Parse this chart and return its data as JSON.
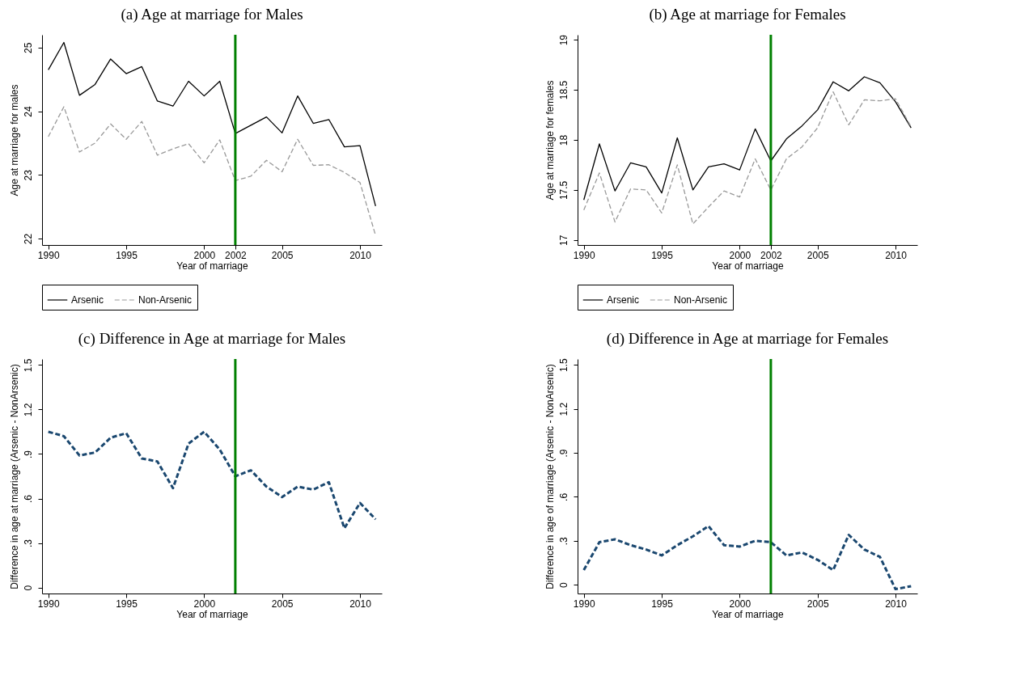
{
  "chart_data": [
    {
      "type": "line",
      "title": "(a) Age at marriage for Males",
      "xlabel": "Year of marriage",
      "ylabel": "Age at marriage for males",
      "x": [
        1990,
        1991,
        1992,
        1993,
        1994,
        1995,
        1996,
        1997,
        1998,
        1999,
        2000,
        2001,
        2002,
        2003,
        2004,
        2005,
        2006,
        2007,
        2008,
        2009,
        2010,
        2011
      ],
      "series": [
        {
          "name": "Arsenic",
          "color": "#000000",
          "line_style": "solid",
          "values": [
            24.65,
            25.08,
            24.25,
            24.42,
            24.82,
            24.59,
            24.7,
            24.16,
            24.08,
            24.47,
            24.24,
            24.47,
            23.65,
            23.78,
            23.91,
            23.66,
            24.24,
            23.81,
            23.87,
            23.44,
            23.46,
            22.51
          ]
        },
        {
          "name": "Non-Arsenic",
          "color": "#999999",
          "line_style": "dashed",
          "values": [
            23.6,
            24.07,
            23.36,
            23.5,
            23.8,
            23.56,
            23.84,
            23.31,
            23.41,
            23.49,
            23.19,
            23.55,
            22.91,
            22.98,
            23.23,
            23.05,
            23.56,
            23.15,
            23.16,
            23.04,
            22.88,
            22.05
          ]
        }
      ],
      "xlim": [
        1989.6,
        2011.4
      ],
      "xticks": [
        1990,
        1995,
        2000,
        2002,
        2005,
        2010
      ],
      "ylim": [
        21.9,
        25.2
      ],
      "yticks": [
        22,
        23,
        24,
        25
      ],
      "ref_lines": [
        {
          "axis": "x",
          "value": 2002,
          "color": "#008000"
        }
      ],
      "legend": "bottom",
      "grid": false
    },
    {
      "type": "line",
      "title": "(b) Age at marriage for Females",
      "xlabel": "Year of marriage",
      "ylabel": "Age at marriage for females",
      "x": [
        1990,
        1991,
        1992,
        1993,
        1994,
        1995,
        1996,
        1997,
        1998,
        1999,
        2000,
        2001,
        2002,
        2003,
        2004,
        2005,
        2006,
        2007,
        2008,
        2009,
        2010,
        2011
      ],
      "series": [
        {
          "name": "Arsenic",
          "color": "#000000",
          "line_style": "solid",
          "values": [
            17.4,
            17.96,
            17.49,
            17.77,
            17.73,
            17.47,
            18.02,
            17.5,
            17.73,
            17.76,
            17.7,
            18.11,
            17.79,
            18.01,
            18.14,
            18.3,
            18.58,
            18.49,
            18.63,
            18.57,
            18.38,
            18.12
          ]
        },
        {
          "name": "Non-Arsenic",
          "color": "#999999",
          "line_style": "dashed",
          "values": [
            17.3,
            17.67,
            17.18,
            17.51,
            17.5,
            17.27,
            17.75,
            17.16,
            17.33,
            17.49,
            17.43,
            17.81,
            17.5,
            17.81,
            17.93,
            18.12,
            18.48,
            18.15,
            18.4,
            18.39,
            18.41,
            18.13
          ]
        }
      ],
      "xlim": [
        1989.6,
        2011.4
      ],
      "xticks": [
        1990,
        1995,
        2000,
        2002,
        2005,
        2010
      ],
      "ylim": [
        16.95,
        19.05
      ],
      "yticks": [
        17,
        17.5,
        18,
        18.5,
        19
      ],
      "ref_lines": [
        {
          "axis": "x",
          "value": 2002,
          "color": "#008000"
        }
      ],
      "legend": "bottom",
      "grid": false
    },
    {
      "type": "line",
      "title": "(c) Difference in Age at marriage for Males",
      "xlabel": "Year of marriage",
      "ylabel": "Difference in age at marriage (Arsenic - NonArsenic)",
      "x": [
        1990,
        1991,
        1992,
        1993,
        1994,
        1995,
        1996,
        1997,
        1998,
        1999,
        2000,
        2001,
        2002,
        2003,
        2004,
        2005,
        2006,
        2007,
        2008,
        2009,
        2010,
        2011
      ],
      "series": [
        {
          "color": "#1a476f",
          "line_style": "dashed",
          "values": [
            1.05,
            1.02,
            0.89,
            0.91,
            1.01,
            1.04,
            0.87,
            0.85,
            0.67,
            0.97,
            1.05,
            0.93,
            0.75,
            0.79,
            0.68,
            0.61,
            0.68,
            0.66,
            0.71,
            0.4,
            0.57,
            0.46
          ]
        }
      ],
      "xlim": [
        1989.6,
        2011.4
      ],
      "xticks": [
        1990,
        1995,
        2000,
        2005,
        2010
      ],
      "ylim": [
        -0.04,
        1.54
      ],
      "yticks": [
        0,
        {
          "value": 0.3,
          "label": ".3"
        },
        {
          "value": 0.6,
          "label": ".6"
        },
        {
          "value": 0.9,
          "label": ".9"
        },
        1.2,
        1.5
      ],
      "ref_lines": [
        {
          "axis": "x",
          "value": 2002,
          "color": "#008000"
        }
      ],
      "grid": false
    },
    {
      "type": "line",
      "title": "(d) Difference in Age at marriage for Females",
      "xlabel": "Year of marriage",
      "ylabel": "Difference in age of marriage (Arsenic - NonArsenic)",
      "x": [
        1990,
        1991,
        1992,
        1993,
        1994,
        1995,
        1996,
        1997,
        1998,
        1999,
        2000,
        2001,
        2002,
        2003,
        2004,
        2005,
        2006,
        2007,
        2008,
        2009,
        2010,
        2011
      ],
      "series": [
        {
          "color": "#1a476f",
          "line_style": "dashed",
          "values": [
            0.1,
            0.29,
            0.31,
            0.27,
            0.24,
            0.2,
            0.27,
            0.33,
            0.4,
            0.27,
            0.26,
            0.3,
            0.29,
            0.2,
            0.22,
            0.17,
            0.1,
            0.34,
            0.24,
            0.19,
            -0.03,
            -0.01
          ]
        }
      ],
      "xlim": [
        1989.6,
        2011.4
      ],
      "xticks": [
        1990,
        1995,
        2000,
        2005,
        2010
      ],
      "ylim": [
        -0.06,
        1.54
      ],
      "yticks": [
        0,
        {
          "value": 0.3,
          "label": ".3"
        },
        {
          "value": 0.6,
          "label": ".6"
        },
        {
          "value": 0.9,
          "label": ".9"
        },
        1.2,
        1.5
      ],
      "ref_lines": [
        {
          "axis": "x",
          "value": 2002,
          "color": "#008000"
        }
      ],
      "grid": false
    }
  ]
}
